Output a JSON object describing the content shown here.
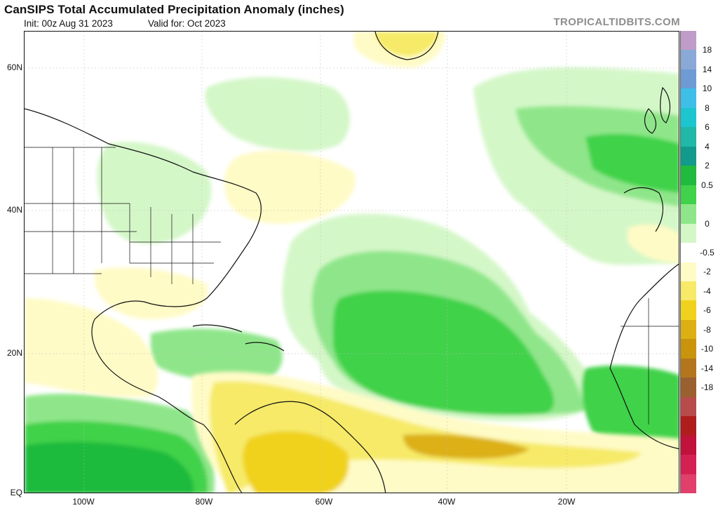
{
  "header": {
    "title": "CanSIPS Total Accumulated Precipitation Anomaly (inches)",
    "init": "Init: 00z Aug 31 2023",
    "valid": "Valid for: Oct 2023",
    "brand": "TROPICALTIDBITS.COM"
  },
  "map": {
    "lat_labels": [
      "60N",
      "40N",
      "20N",
      "EQ"
    ],
    "lon_labels": [
      "100W",
      "80W",
      "60W",
      "40W",
      "20W"
    ]
  },
  "colorbar": {
    "labels": [
      "18",
      "14",
      "10",
      "8",
      "6",
      "4",
      "2",
      "0.5",
      "0",
      "-0.5",
      "-2",
      "-4",
      "-6",
      "-8",
      "-10",
      "-14",
      "-18"
    ],
    "colors": [
      "#c09cc9",
      "#8ba9d6",
      "#6e9bd4",
      "#3dbfe8",
      "#1dc5cf",
      "#20b8a6",
      "#129a8c",
      "#1fba3e",
      "#3fd24a",
      "#8fe68a",
      "#d4f7c8",
      "#ffffff",
      "#fffbc6",
      "#f6ea68",
      "#f0d21e",
      "#dcb012",
      "#c9940c",
      "#b3761c",
      "#9a6030",
      "#b84c4c",
      "#b01d1d",
      "#c0123a",
      "#d42052",
      "#e0406b"
    ]
  }
}
